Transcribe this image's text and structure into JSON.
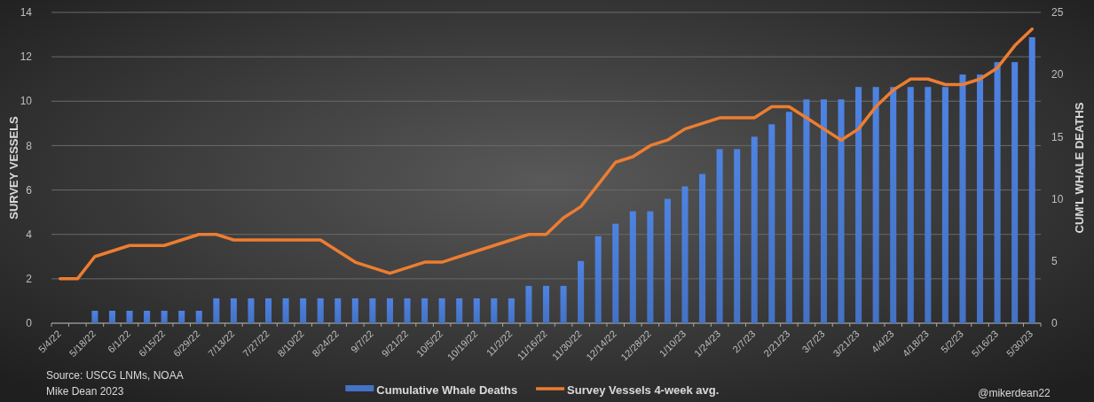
{
  "chart_data": {
    "type": "bar",
    "categories": [
      "5/4/22",
      null,
      "5/18/22",
      null,
      "6/1/22",
      null,
      "6/15/22",
      null,
      "6/29/22",
      null,
      "7/13/22",
      null,
      "7/27/22",
      null,
      "8/10/22",
      null,
      "8/24/22",
      null,
      "9/7/22",
      null,
      "9/21/22",
      null,
      "10/5/22",
      null,
      "10/19/22",
      null,
      "11/2/22",
      null,
      "11/16/22",
      null,
      "11/30/22",
      null,
      "12/14/22",
      null,
      "12/28/22",
      null,
      "1/10/23",
      null,
      "1/24/23",
      null,
      "2/7/23",
      null,
      "2/21/23",
      null,
      "3/7/23",
      null,
      "3/21/23",
      null,
      "4/4/23",
      null,
      "4/18/23",
      null,
      "5/2/23",
      null,
      "5/16/23",
      null,
      "5/30/23"
    ],
    "series": [
      {
        "name": "Cumulative Whale Deaths",
        "axis": "y2",
        "color": "#4472c4",
        "values": [
          0,
          0,
          1,
          1,
          1,
          1,
          1,
          1,
          1,
          2,
          2,
          2,
          2,
          2,
          2,
          2,
          2,
          2,
          2,
          2,
          2,
          2,
          2,
          2,
          2,
          2,
          2,
          3,
          3,
          3,
          5,
          7,
          8,
          9,
          9,
          10,
          11,
          12,
          14,
          14,
          15,
          16,
          17,
          18,
          18,
          18,
          19,
          19,
          19,
          19,
          19,
          19,
          20,
          20,
          21,
          21,
          23
        ]
      },
      {
        "name": "Survey Vessels 4-week avg.",
        "type": "line",
        "color": "#ed7d31",
        "values": [
          2,
          2,
          3,
          3.25,
          3.5,
          3.5,
          3.5,
          3.75,
          4,
          4,
          3.75,
          3.75,
          3.75,
          3.75,
          3.75,
          3.75,
          3.25,
          2.75,
          2.5,
          2.25,
          2.5,
          2.75,
          2.75,
          3,
          3.25,
          3.5,
          3.75,
          4,
          4,
          4.75,
          5.25,
          6.25,
          7.25,
          7.5,
          8,
          8.25,
          8.75,
          9,
          9.25,
          9.25,
          9.25,
          9.75,
          9.75,
          9.25,
          8.75,
          8.25,
          8.75,
          9.75,
          10.5,
          11,
          11,
          10.75,
          10.75,
          11,
          11.5,
          12.5,
          13.25
        ]
      }
    ],
    "ylabel": "SURVEY VESSELS",
    "y2label": "CUM'L WHALE DEATHS",
    "ylim": [
      0,
      14
    ],
    "yticks": [
      0,
      2,
      4,
      6,
      8,
      10,
      12,
      14
    ],
    "y2lim": [
      0,
      25
    ],
    "y2ticks": [
      0,
      5,
      10,
      15,
      20,
      25
    ],
    "grid": "y",
    "legend": "bottom",
    "annotations": [
      "Source: USCG LNMs, NOAA",
      "Mike Dean 2023",
      "@mikerdean22"
    ]
  }
}
